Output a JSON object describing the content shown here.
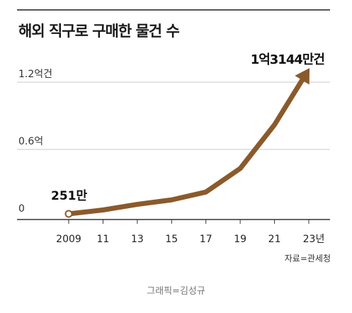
{
  "title": "해외 직구로 구매한 물건 수",
  "source": "자료=관세청",
  "credit": "그래픽=김성규",
  "colors": {
    "line": "#8B5A2B",
    "axis": "#333333",
    "grid": "#c8c8c8",
    "start_marker_fill": "#ffffff"
  },
  "chart_data": {
    "type": "line",
    "x": [
      2009,
      2011,
      2013,
      2015,
      2017,
      2019,
      2021,
      2023
    ],
    "tick_labels": [
      "2009",
      "11",
      "13",
      "15",
      "17",
      "19",
      "21",
      "23년"
    ],
    "y_ticks": [
      {
        "value": 0,
        "label": "0"
      },
      {
        "value": 0.6,
        "label": "0.6억"
      },
      {
        "value": 1.2,
        "label": "1.2억건"
      }
    ],
    "series": [
      {
        "values": [
          0.0251,
          0.06,
          0.11,
          0.15,
          0.22,
          0.43,
          0.82,
          1.3144
        ]
      }
    ],
    "annotations": [
      {
        "label": "251만",
        "at_x": 2009
      },
      {
        "label": "1억3144만건",
        "at_x": 2023
      }
    ],
    "ylim": [
      0,
      1.35
    ],
    "grid": true,
    "legend": "none"
  }
}
